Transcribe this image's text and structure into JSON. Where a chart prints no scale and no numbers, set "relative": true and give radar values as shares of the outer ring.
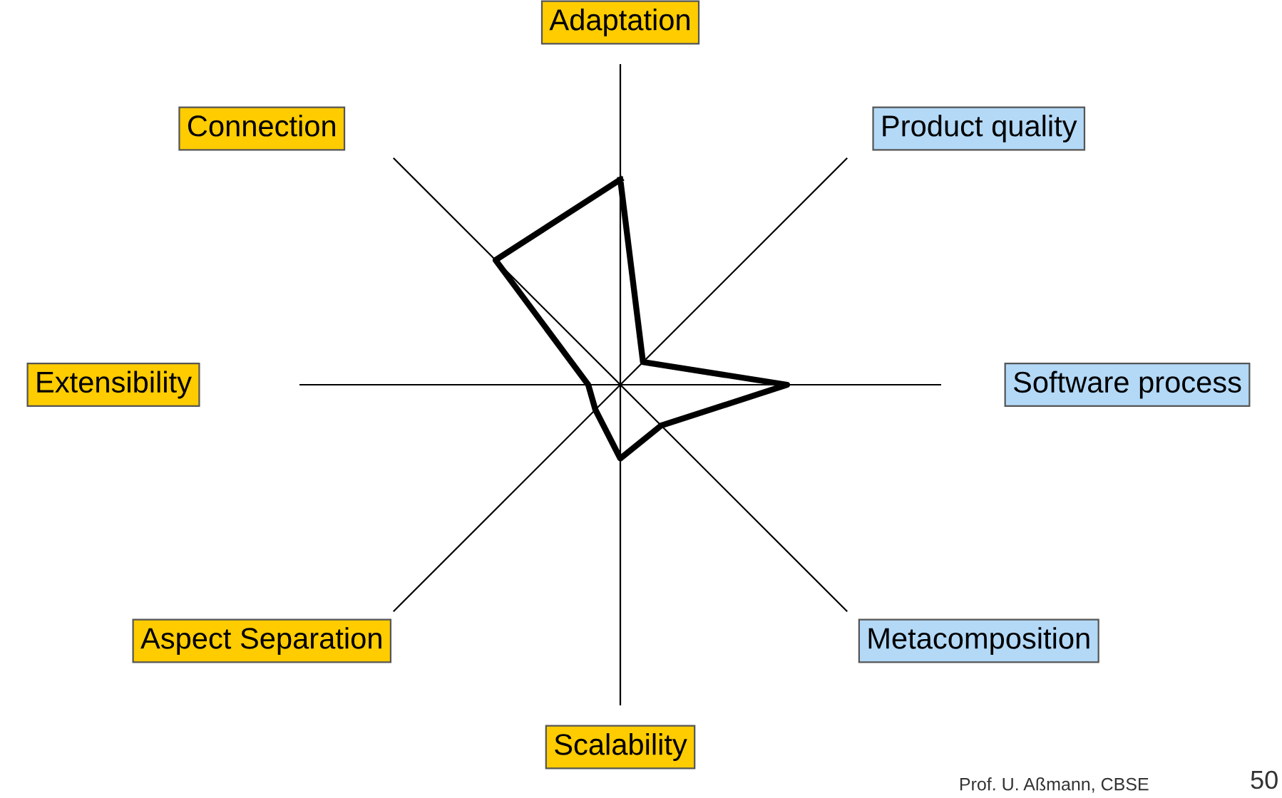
{
  "chart_data": {
    "type": "radar",
    "relative": true,
    "categories": [
      "Adaptation",
      "Product quality",
      "Software process",
      "Metacomposition",
      "Scalability",
      "Aspect Separation",
      "Extensibility",
      "Connection"
    ],
    "series": [
      {
        "color": "#000000",
        "values": [
          0.64,
          0.1,
          0.52,
          0.18,
          0.23,
          0.11,
          0.1,
          0.55
        ]
      }
    ],
    "annotations": [
      "Prof. U. Aßmann, CBSE",
      "50"
    ]
  }
}
